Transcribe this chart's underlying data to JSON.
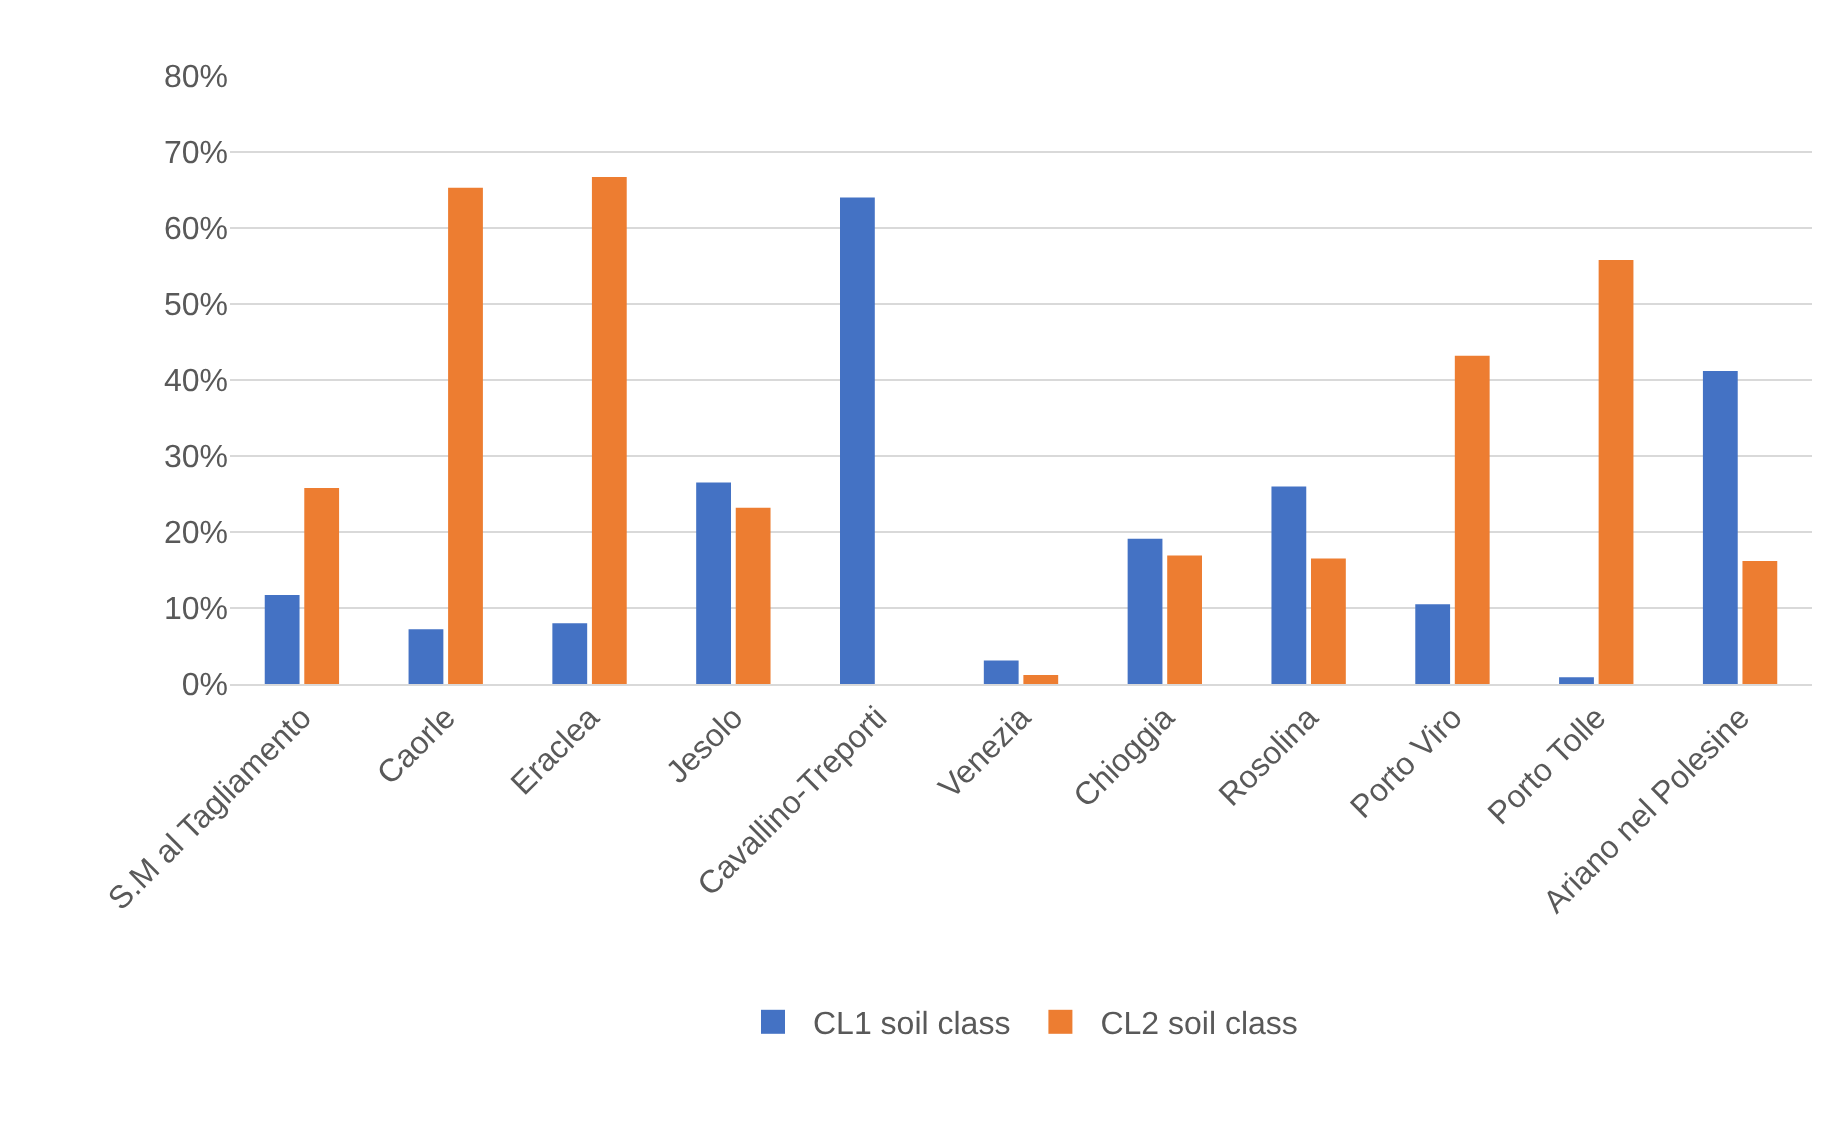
{
  "chart_data": {
    "type": "bar",
    "categories": [
      "S.M al Tagliamento",
      "Caorle",
      "Eraclea",
      "Jesolo",
      "Cavallino-Treporti",
      "Venezia",
      "Chioggia",
      "Rosolina",
      "Porto Viro",
      "Porto Tolle",
      "Ariano nel Polesine"
    ],
    "series": [
      {
        "name": "CL1 soil class",
        "color": "#4472c4",
        "values": [
          11.7,
          7.2,
          8.0,
          26.5,
          64.0,
          3.1,
          19.1,
          26.0,
          10.5,
          0.9,
          41.2
        ]
      },
      {
        "name": "CL2 soil class",
        "color": "#ed7d31",
        "values": [
          25.8,
          65.3,
          66.7,
          23.2,
          0,
          1.2,
          16.9,
          16.5,
          43.2,
          55.8,
          16.2
        ]
      }
    ],
    "ylim": [
      0,
      80
    ],
    "yticks": [
      {
        "value": 0,
        "label": "0%"
      },
      {
        "value": 10,
        "label": "10%"
      },
      {
        "value": 20,
        "label": "20%"
      },
      {
        "value": 30,
        "label": "30%"
      },
      {
        "value": 40,
        "label": "40%"
      },
      {
        "value": 50,
        "label": "50%"
      },
      {
        "value": 60,
        "label": "60%"
      },
      {
        "value": 70,
        "label": "70%"
      },
      {
        "value": 80,
        "label": "80%"
      }
    ],
    "grid": "y",
    "legend": "bottom"
  }
}
